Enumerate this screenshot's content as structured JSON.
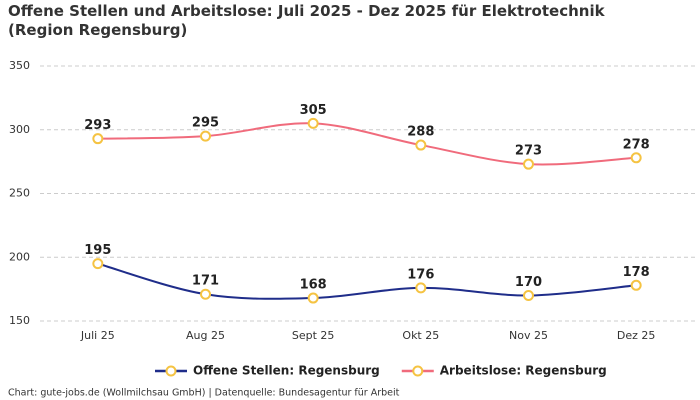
{
  "chart_data": {
    "type": "line",
    "title": "Offene Stellen und Arbeitslose: Juli 2025 - Dez 2025 für Elektrotechnik (Region Regensburg)",
    "categories": [
      "Juli 25",
      "Aug 25",
      "Sept 25",
      "Okt 25",
      "Nov 25",
      "Dez 25"
    ],
    "series": [
      {
        "name": "Offene Stellen: Regensburg",
        "color": "#1f2d8a",
        "values": [
          195,
          171,
          168,
          176,
          170,
          178
        ]
      },
      {
        "name": "Arbeitslose: Regensburg",
        "color": "#f06b7c",
        "values": [
          293,
          295,
          305,
          288,
          273,
          278
        ]
      }
    ],
    "marker_color": "#f5c342",
    "ylim": [
      150,
      350
    ],
    "yticks": [
      150,
      200,
      250,
      300,
      350
    ],
    "grid": true,
    "legend": "bottom",
    "footer": "Chart: gute-jobs.de (Wollmilchsau GmbH) | Datenquelle: Bundesagentur für Arbeit"
  }
}
